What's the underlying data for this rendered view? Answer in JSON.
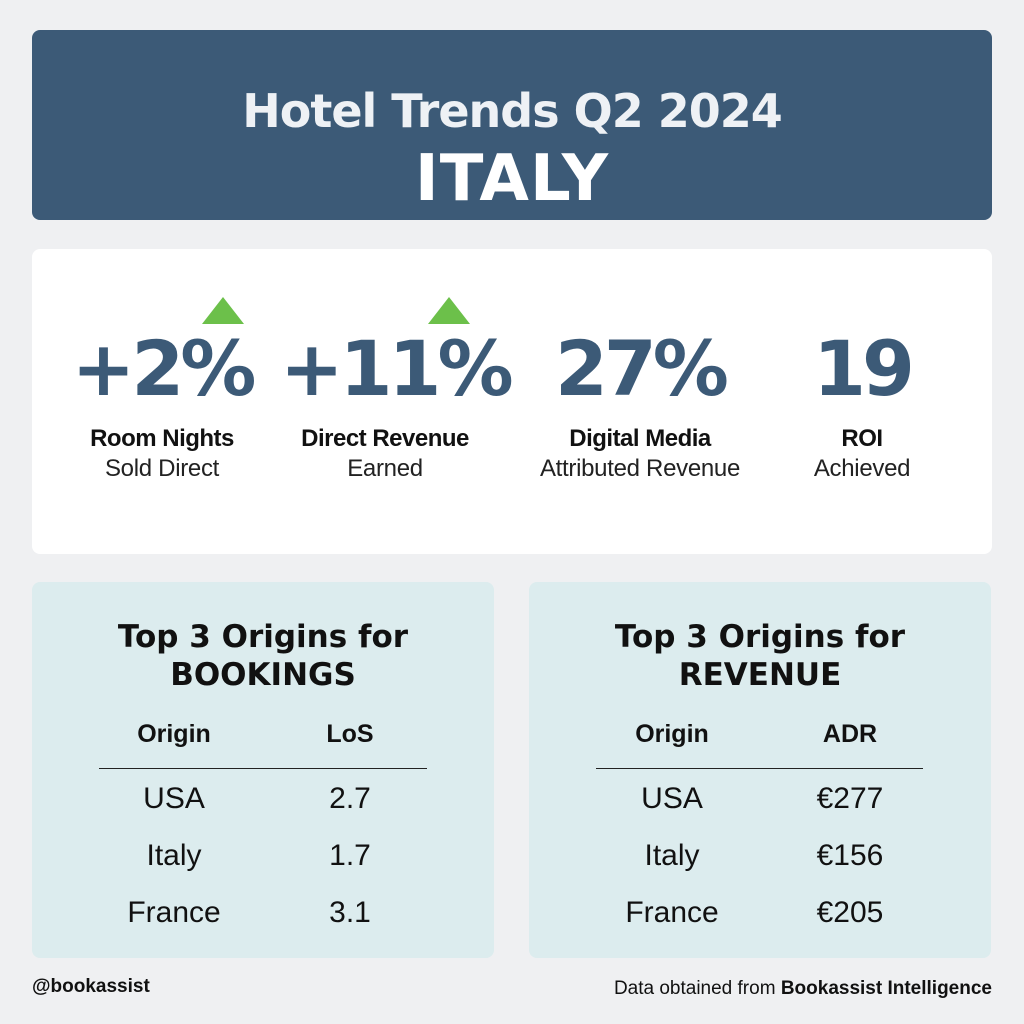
{
  "header": {
    "title": "Hotel Trends Q2 2024",
    "country": "ITALY",
    "background_color": "#3c5a77"
  },
  "kpis": [
    {
      "value": "+2%",
      "label": "Room Nights",
      "sublabel": "Sold Direct",
      "trend_icon": "up-arrow-icon"
    },
    {
      "value": "+11%",
      "label": "Direct Revenue",
      "sublabel": "Earned",
      "trend_icon": "up-arrow-icon"
    },
    {
      "value": "27%",
      "label": "Digital Media",
      "sublabel": "Attributed Revenue"
    },
    {
      "value": "19",
      "label": "ROI",
      "sublabel": "Achieved"
    }
  ],
  "accent_color": "#6cc04a",
  "bookings": {
    "title_line1": "Top 3 Origins for",
    "title_line2": "BOOKINGS",
    "col_origin": "Origin",
    "col_metric": "LoS",
    "rows": [
      {
        "origin": "USA",
        "value": "2.7"
      },
      {
        "origin": "Italy",
        "value": "1.7"
      },
      {
        "origin": "France",
        "value": "3.1"
      }
    ]
  },
  "revenue": {
    "title_line1": "Top 3 Origins for",
    "title_line2": "REVENUE",
    "col_origin": "Origin",
    "col_metric": "ADR",
    "rows": [
      {
        "origin": "USA",
        "value": "€277"
      },
      {
        "origin": "Italy",
        "value": "€156"
      },
      {
        "origin": "France",
        "value": "€205"
      }
    ]
  },
  "footer": {
    "handle": "@bookassist",
    "source_prefix": "Data obtained from",
    "source_name": "Bookassist Intelligence"
  }
}
